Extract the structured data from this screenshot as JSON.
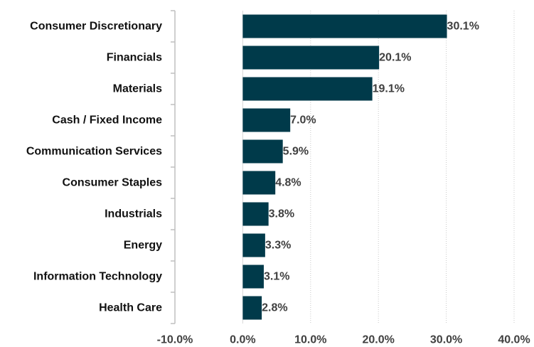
{
  "chart_data": {
    "type": "bar",
    "orientation": "horizontal",
    "categories": [
      "Consumer Discretionary",
      "Financials",
      "Materials",
      "Cash / Fixed Income",
      "Communication Services",
      "Consumer Staples",
      "Industrials",
      "Energy",
      "Information Technology",
      "Health Care"
    ],
    "values": [
      30.1,
      20.1,
      19.1,
      7.0,
      5.9,
      4.8,
      3.8,
      3.3,
      3.1,
      2.8
    ],
    "value_labels": [
      "30.1%",
      "20.1%",
      "19.1%",
      "7.0%",
      "5.9%",
      "4.8%",
      "3.8%",
      "3.3%",
      "3.1%",
      "2.8%"
    ],
    "xlim": [
      -10,
      40
    ],
    "x_ticks": [
      -10,
      0,
      10,
      20,
      30,
      40
    ],
    "x_tick_labels": [
      "-10.0%",
      "0.0%",
      "10.0%",
      "20.0%",
      "30.0%",
      "40.0%"
    ],
    "title": "",
    "xlabel": "",
    "ylabel": "",
    "grid": "vertical dotted",
    "bar_color": "#003a4a",
    "grid_color": "#c8c8c8",
    "axis_color": "#bfbfbf"
  }
}
